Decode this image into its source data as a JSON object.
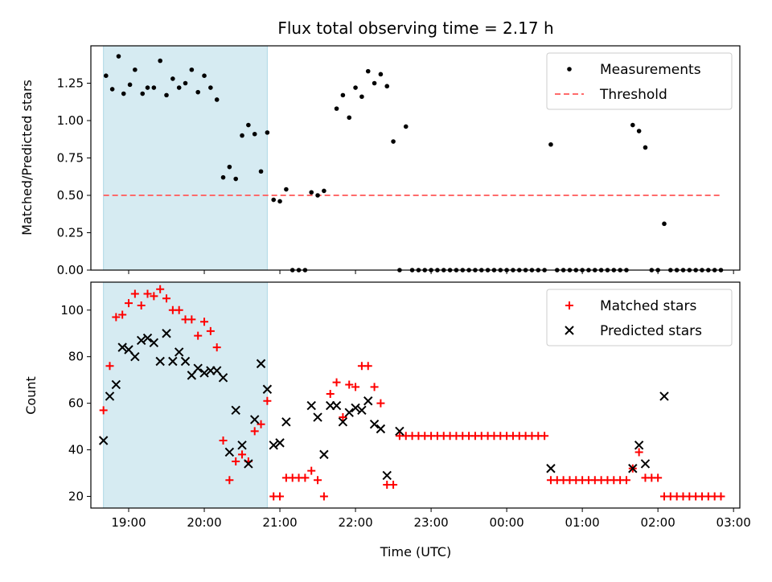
{
  "title": "Flux total observing time = 2.17 h",
  "colors": {
    "shade": "#add8e6",
    "measurement": "#000000",
    "threshold": "#ff6b6b",
    "matched": "#ff0000",
    "predicted": "#000000"
  },
  "chart_data": [
    {
      "type": "scatter",
      "ylabel": "Matched/Predicted stars",
      "ylim": [
        0,
        1.5
      ],
      "yticks": [
        "0.00",
        "0.25",
        "0.50",
        "0.75",
        "1.00",
        "1.25"
      ],
      "xlim": [
        "18:30",
        "03:05"
      ],
      "shaded_interval": [
        "18:40",
        "20:50"
      ],
      "threshold": {
        "value": 0.5,
        "x_range": [
          "18:40",
          "02:50"
        ]
      },
      "legend_position": "top-right",
      "legend": [
        "Measurements",
        "Threshold"
      ],
      "series": [
        {
          "name": "Measurements",
          "marker": "dot",
          "points": [
            [
              "18:42",
              1.3
            ],
            [
              "18:47",
              1.21
            ],
            [
              "18:52",
              1.43
            ],
            [
              "18:56",
              1.18
            ],
            [
              "19:01",
              1.24
            ],
            [
              "19:05",
              1.34
            ],
            [
              "19:11",
              1.18
            ],
            [
              "19:15",
              1.22
            ],
            [
              "19:20",
              1.22
            ],
            [
              "19:25",
              1.4
            ],
            [
              "19:30",
              1.17
            ],
            [
              "19:35",
              1.28
            ],
            [
              "19:40",
              1.22
            ],
            [
              "19:45",
              1.25
            ],
            [
              "19:50",
              1.34
            ],
            [
              "19:55",
              1.19
            ],
            [
              "20:00",
              1.3
            ],
            [
              "20:05",
              1.22
            ],
            [
              "20:10",
              1.14
            ],
            [
              "20:15",
              0.62
            ],
            [
              "20:20",
              0.69
            ],
            [
              "20:25",
              0.61
            ],
            [
              "20:30",
              0.9
            ],
            [
              "20:35",
              0.97
            ],
            [
              "20:40",
              0.91
            ],
            [
              "20:45",
              0.66
            ],
            [
              "20:50",
              0.92
            ],
            [
              "20:55",
              0.47
            ],
            [
              "21:00",
              0.46
            ],
            [
              "21:05",
              0.54
            ],
            [
              "21:10",
              0.0
            ],
            [
              "21:15",
              0.0
            ],
            [
              "21:20",
              0.0
            ],
            [
              "21:25",
              0.52
            ],
            [
              "21:30",
              0.5
            ],
            [
              "21:35",
              0.53
            ],
            [
              "21:45",
              1.08
            ],
            [
              "21:50",
              1.17
            ],
            [
              "21:55",
              1.02
            ],
            [
              "22:00",
              1.22
            ],
            [
              "22:05",
              1.16
            ],
            [
              "22:10",
              1.33
            ],
            [
              "22:15",
              1.25
            ],
            [
              "22:20",
              1.31
            ],
            [
              "22:25",
              1.23
            ],
            [
              "22:30",
              0.86
            ],
            [
              "22:35",
              0.0
            ],
            [
              "22:40",
              0.96
            ],
            [
              "22:45",
              0.0
            ],
            [
              "22:50",
              0.0
            ],
            [
              "22:55",
              0.0
            ],
            [
              "23:00",
              0.0
            ],
            [
              "23:05",
              0.0
            ],
            [
              "23:10",
              0.0
            ],
            [
              "23:15",
              0.0
            ],
            [
              "23:20",
              0.0
            ],
            [
              "23:25",
              0.0
            ],
            [
              "23:30",
              0.0
            ],
            [
              "23:35",
              0.0
            ],
            [
              "23:40",
              0.0
            ],
            [
              "23:45",
              0.0
            ],
            [
              "23:50",
              0.0
            ],
            [
              "23:55",
              0.0
            ],
            [
              "00:00",
              0.0
            ],
            [
              "00:05",
              0.0
            ],
            [
              "00:10",
              0.0
            ],
            [
              "00:15",
              0.0
            ],
            [
              "00:20",
              0.0
            ],
            [
              "00:25",
              0.0
            ],
            [
              "00:30",
              0.0
            ],
            [
              "00:35",
              0.84
            ],
            [
              "00:40",
              0.0
            ],
            [
              "00:45",
              0.0
            ],
            [
              "00:50",
              0.0
            ],
            [
              "00:55",
              0.0
            ],
            [
              "01:00",
              0.0
            ],
            [
              "01:05",
              0.0
            ],
            [
              "01:10",
              0.0
            ],
            [
              "01:15",
              0.0
            ],
            [
              "01:20",
              0.0
            ],
            [
              "01:25",
              0.0
            ],
            [
              "01:30",
              0.0
            ],
            [
              "01:35",
              0.0
            ],
            [
              "01:40",
              0.97
            ],
            [
              "01:45",
              0.93
            ],
            [
              "01:50",
              0.82
            ],
            [
              "01:55",
              0.0
            ],
            [
              "02:00",
              0.0
            ],
            [
              "02:05",
              0.31
            ],
            [
              "02:10",
              0.0
            ],
            [
              "02:15",
              0.0
            ],
            [
              "02:20",
              0.0
            ],
            [
              "02:25",
              0.0
            ],
            [
              "02:30",
              0.0
            ],
            [
              "02:35",
              0.0
            ],
            [
              "02:40",
              0.0
            ],
            [
              "02:45",
              0.0
            ],
            [
              "02:50",
              0.0
            ]
          ]
        }
      ]
    },
    {
      "type": "scatter",
      "ylabel": "Count",
      "xlabel": "Time (UTC)",
      "ylim": [
        15,
        112
      ],
      "yticks": [
        "20",
        "40",
        "60",
        "80",
        "100"
      ],
      "xlim": [
        "18:30",
        "03:05"
      ],
      "xticks": [
        "19:00",
        "20:00",
        "21:00",
        "22:00",
        "23:00",
        "00:00",
        "01:00",
        "02:00",
        "03:00"
      ],
      "shaded_interval": [
        "18:40",
        "20:50"
      ],
      "legend_position": "top-right",
      "legend": [
        "Matched stars",
        "Predicted stars"
      ],
      "series": [
        {
          "name": "Matched stars",
          "marker": "plus",
          "points": [
            [
              "18:40",
              57
            ],
            [
              "18:45",
              76
            ],
            [
              "18:50",
              97
            ],
            [
              "18:55",
              98
            ],
            [
              "19:00",
              103
            ],
            [
              "19:05",
              107
            ],
            [
              "19:10",
              102
            ],
            [
              "19:15",
              107
            ],
            [
              "19:20",
              106
            ],
            [
              "19:25",
              109
            ],
            [
              "19:30",
              105
            ],
            [
              "19:35",
              100
            ],
            [
              "19:40",
              100
            ],
            [
              "19:45",
              96
            ],
            [
              "19:50",
              96
            ],
            [
              "19:55",
              89
            ],
            [
              "20:00",
              95
            ],
            [
              "20:05",
              91
            ],
            [
              "20:10",
              84
            ],
            [
              "20:15",
              44
            ],
            [
              "20:20",
              27
            ],
            [
              "20:25",
              35
            ],
            [
              "20:30",
              38
            ],
            [
              "20:35",
              35
            ],
            [
              "20:40",
              48
            ],
            [
              "20:45",
              51
            ],
            [
              "20:50",
              61
            ],
            [
              "20:55",
              20
            ],
            [
              "21:00",
              20
            ],
            [
              "21:05",
              28
            ],
            [
              "21:10",
              28
            ],
            [
              "21:15",
              28
            ],
            [
              "21:20",
              28
            ],
            [
              "21:25",
              31
            ],
            [
              "21:30",
              27
            ],
            [
              "21:35",
              20
            ],
            [
              "21:40",
              64
            ],
            [
              "21:45",
              69
            ],
            [
              "21:50",
              54
            ],
            [
              "21:55",
              68
            ],
            [
              "22:00",
              67
            ],
            [
              "22:05",
              76
            ],
            [
              "22:10",
              76
            ],
            [
              "22:15",
              67
            ],
            [
              "22:20",
              60
            ],
            [
              "22:25",
              25
            ],
            [
              "22:30",
              25
            ],
            [
              "22:35",
              46
            ],
            [
              "22:40",
              46
            ],
            [
              "22:45",
              46
            ],
            [
              "22:50",
              46
            ],
            [
              "22:55",
              46
            ],
            [
              "23:00",
              46
            ],
            [
              "23:05",
              46
            ],
            [
              "23:10",
              46
            ],
            [
              "23:15",
              46
            ],
            [
              "23:20",
              46
            ],
            [
              "23:25",
              46
            ],
            [
              "23:30",
              46
            ],
            [
              "23:35",
              46
            ],
            [
              "23:40",
              46
            ],
            [
              "23:45",
              46
            ],
            [
              "23:50",
              46
            ],
            [
              "23:55",
              46
            ],
            [
              "00:00",
              46
            ],
            [
              "00:05",
              46
            ],
            [
              "00:10",
              46
            ],
            [
              "00:15",
              46
            ],
            [
              "00:20",
              46
            ],
            [
              "00:25",
              46
            ],
            [
              "00:30",
              46
            ],
            [
              "00:35",
              27
            ],
            [
              "00:40",
              27
            ],
            [
              "00:45",
              27
            ],
            [
              "00:50",
              27
            ],
            [
              "00:55",
              27
            ],
            [
              "01:00",
              27
            ],
            [
              "01:05",
              27
            ],
            [
              "01:10",
              27
            ],
            [
              "01:15",
              27
            ],
            [
              "01:20",
              27
            ],
            [
              "01:25",
              27
            ],
            [
              "01:30",
              27
            ],
            [
              "01:35",
              27
            ],
            [
              "01:40",
              32
            ],
            [
              "01:45",
              39
            ],
            [
              "01:50",
              28
            ],
            [
              "01:55",
              28
            ],
            [
              "02:00",
              28
            ],
            [
              "02:05",
              20
            ],
            [
              "02:10",
              20
            ],
            [
              "02:15",
              20
            ],
            [
              "02:20",
              20
            ],
            [
              "02:25",
              20
            ],
            [
              "02:30",
              20
            ],
            [
              "02:35",
              20
            ],
            [
              "02:40",
              20
            ],
            [
              "02:45",
              20
            ],
            [
              "02:50",
              20
            ]
          ]
        },
        {
          "name": "Predicted stars",
          "marker": "x",
          "points": [
            [
              "18:40",
              44
            ],
            [
              "18:45",
              63
            ],
            [
              "18:50",
              68
            ],
            [
              "18:55",
              84
            ],
            [
              "19:00",
              83
            ],
            [
              "19:05",
              80
            ],
            [
              "19:10",
              87
            ],
            [
              "19:15",
              88
            ],
            [
              "19:20",
              86
            ],
            [
              "19:25",
              78
            ],
            [
              "19:30",
              90
            ],
            [
              "19:35",
              78
            ],
            [
              "19:40",
              82
            ],
            [
              "19:45",
              78
            ],
            [
              "19:50",
              72
            ],
            [
              "19:55",
              75
            ],
            [
              "20:00",
              73
            ],
            [
              "20:05",
              74
            ],
            [
              "20:10",
              74
            ],
            [
              "20:15",
              71
            ],
            [
              "20:20",
              39
            ],
            [
              "20:25",
              57
            ],
            [
              "20:30",
              42
            ],
            [
              "20:35",
              34
            ],
            [
              "20:40",
              53
            ],
            [
              "20:45",
              77
            ],
            [
              "20:50",
              66
            ],
            [
              "20:55",
              42
            ],
            [
              "21:00",
              43
            ],
            [
              "21:05",
              52
            ],
            [
              "21:25",
              59
            ],
            [
              "21:30",
              54
            ],
            [
              "21:35",
              38
            ],
            [
              "21:40",
              59
            ],
            [
              "21:45",
              59
            ],
            [
              "21:50",
              52
            ],
            [
              "21:55",
              56
            ],
            [
              "22:00",
              58
            ],
            [
              "22:05",
              57
            ],
            [
              "22:10",
              61
            ],
            [
              "22:15",
              51
            ],
            [
              "22:20",
              49
            ],
            [
              "22:25",
              29
            ],
            [
              "22:35",
              48
            ],
            [
              "00:35",
              32
            ],
            [
              "01:40",
              32
            ],
            [
              "01:45",
              42
            ],
            [
              "01:50",
              34
            ],
            [
              "02:05",
              63
            ]
          ]
        }
      ]
    }
  ]
}
